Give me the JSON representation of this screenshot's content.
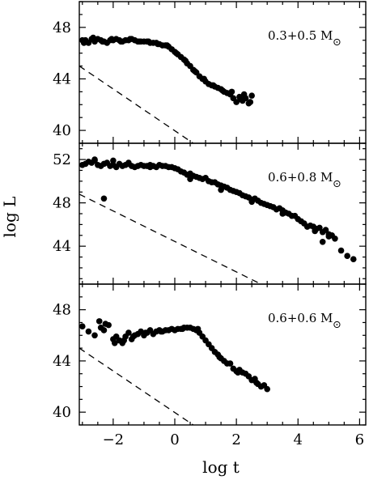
{
  "chart_data": [
    {
      "type": "scatter",
      "panel_label": "0.3+0.5",
      "panel_unit": "M",
      "xlim": [
        -3.1,
        6.2
      ],
      "ylim": [
        39,
        50
      ],
      "yticks": [
        40,
        44,
        48
      ],
      "scatter": {
        "x": [
          -3.0,
          -2.9,
          -2.8,
          -2.7,
          -2.6,
          -2.5,
          -2.4,
          -2.3,
          -2.2,
          -2.1,
          -2.0,
          -1.9,
          -1.8,
          -1.7,
          -1.6,
          -1.5,
          -1.4,
          -1.3,
          -1.2,
          -1.1,
          -1.0,
          -0.9,
          -0.8,
          -0.7,
          -0.6,
          -0.5,
          -0.4,
          -0.3,
          -0.2,
          -0.1,
          0.0,
          0.1,
          0.2,
          0.3,
          0.4,
          0.5,
          0.6,
          0.7,
          0.8,
          0.9,
          1.0,
          1.1,
          1.2,
          1.3,
          1.4,
          1.5,
          1.6,
          1.7,
          1.8,
          1.9,
          2.0,
          2.1,
          2.2,
          2.3,
          2.4,
          2.5,
          -2.95,
          -2.65,
          -2.35,
          -2.05,
          -1.75,
          -1.45,
          -1.15,
          -0.85,
          -0.55,
          -0.25,
          0.05,
          0.35,
          0.65,
          0.95,
          1.25,
          1.55,
          1.85,
          2.15,
          2.25,
          2.45
        ],
        "y": [
          47.0,
          47.0,
          46.8,
          47.1,
          46.9,
          47.1,
          47.0,
          46.9,
          46.8,
          47.0,
          47.0,
          47.1,
          47.0,
          46.9,
          47.0,
          47.0,
          47.1,
          47.0,
          46.9,
          46.9,
          46.9,
          46.9,
          46.8,
          46.8,
          46.8,
          46.7,
          46.6,
          46.6,
          46.5,
          46.3,
          46.1,
          45.9,
          45.7,
          45.5,
          45.2,
          45.0,
          44.7,
          44.5,
          44.2,
          44.0,
          43.8,
          43.6,
          43.5,
          43.4,
          43.3,
          43.2,
          43.0,
          42.9,
          42.8,
          42.5,
          42.2,
          42.6,
          42.3,
          42.5,
          42.1,
          42.7,
          46.8,
          47.2,
          46.9,
          47.1,
          46.9,
          47.1,
          46.9,
          46.9,
          46.7,
          46.6,
          46.0,
          45.4,
          44.6,
          44.0,
          43.5,
          43.1,
          43.0,
          42.4,
          42.8,
          42.2
        ]
      },
      "dashed_line": {
        "x": [
          -3.1,
          0.6
        ],
        "y": [
          45.0,
          39.0
        ]
      }
    },
    {
      "type": "scatter",
      "panel_label": "0.6+0.8",
      "panel_unit": "M",
      "xlim": [
        -3.1,
        6.2
      ],
      "ylim": [
        40.5,
        53.5
      ],
      "yticks": [
        44,
        48,
        52
      ],
      "scatter": {
        "x": [
          -3.0,
          -2.9,
          -2.8,
          -2.7,
          -2.6,
          -2.5,
          -2.4,
          -2.3,
          -2.2,
          -2.1,
          -2.0,
          -1.9,
          -1.8,
          -1.7,
          -1.6,
          -1.5,
          -1.4,
          -1.3,
          -1.2,
          -1.1,
          -1.0,
          -0.9,
          -0.8,
          -0.7,
          -0.6,
          -0.5,
          -0.4,
          -0.3,
          -0.2,
          -0.1,
          0.0,
          0.1,
          0.2,
          0.3,
          0.4,
          0.5,
          0.6,
          0.7,
          0.8,
          0.9,
          1.0,
          1.1,
          1.2,
          1.3,
          1.4,
          1.5,
          1.6,
          1.7,
          1.8,
          1.9,
          2.0,
          2.1,
          2.2,
          2.3,
          2.4,
          2.5,
          2.6,
          2.7,
          2.8,
          2.9,
          3.0,
          3.1,
          3.2,
          3.3,
          3.4,
          3.5,
          3.6,
          3.7,
          3.8,
          3.9,
          4.0,
          4.1,
          4.2,
          4.3,
          4.4,
          4.5,
          4.6,
          4.7,
          4.8,
          4.9,
          5.0,
          5.1,
          5.2,
          5.4,
          5.6,
          5.8,
          -2.3,
          -2.6,
          -2.0,
          -1.5,
          -0.8,
          0.5,
          1.5,
          2.5,
          3.5,
          4.55,
          4.8,
          5.0
        ],
        "y": [
          51.5,
          51.6,
          51.8,
          51.7,
          51.9,
          51.5,
          51.4,
          51.6,
          51.7,
          51.4,
          51.5,
          51.3,
          51.6,
          51.4,
          51.5,
          51.6,
          51.4,
          51.3,
          51.4,
          51.5,
          51.4,
          51.4,
          51.3,
          51.4,
          51.3,
          51.5,
          51.4,
          51.4,
          51.3,
          51.3,
          51.2,
          51.1,
          50.9,
          50.8,
          50.6,
          50.7,
          50.5,
          50.4,
          50.3,
          50.2,
          50.3,
          50.0,
          49.9,
          49.9,
          49.7,
          49.6,
          49.5,
          49.4,
          49.2,
          49.1,
          49.0,
          48.9,
          48.7,
          48.6,
          48.5,
          48.3,
          48.4,
          48.2,
          48.0,
          47.9,
          47.8,
          47.7,
          47.6,
          47.4,
          47.5,
          47.3,
          47.1,
          47.0,
          46.8,
          46.8,
          46.5,
          46.3,
          46.1,
          45.8,
          45.9,
          45.8,
          45.6,
          45.7,
          45.3,
          45.5,
          45.1,
          45.0,
          44.7,
          43.6,
          43.1,
          42.8,
          48.4,
          52.0,
          51.9,
          51.7,
          51.5,
          50.2,
          49.2,
          48.1,
          47.0,
          45.4,
          44.4,
          44.9
        ]
      },
      "dashed_line": {
        "x": [
          -3.1,
          2.8
        ],
        "y": [
          48.8,
          40.5
        ]
      }
    },
    {
      "type": "scatter",
      "panel_label": "0.6+0.6",
      "panel_unit": "M",
      "xlim": [
        -3.1,
        6.2
      ],
      "ylim": [
        39,
        50
      ],
      "yticks": [
        40,
        44,
        48
      ],
      "scatter": {
        "x": [
          -3.0,
          -2.8,
          -2.6,
          -2.45,
          -2.3,
          -2.15,
          -2.0,
          -1.9,
          -1.8,
          -1.7,
          -1.6,
          -1.5,
          -1.4,
          -1.3,
          -1.2,
          -1.1,
          -1.0,
          -0.9,
          -0.8,
          -0.7,
          -0.6,
          -0.5,
          -0.4,
          -0.3,
          -0.2,
          -0.1,
          0.0,
          0.1,
          0.2,
          0.3,
          0.4,
          0.5,
          0.6,
          0.7,
          0.8,
          0.9,
          1.0,
          1.1,
          1.2,
          1.3,
          1.4,
          1.5,
          1.6,
          1.7,
          1.8,
          1.9,
          2.0,
          2.1,
          2.2,
          2.3,
          2.4,
          2.5,
          2.6,
          2.7,
          2.8,
          2.9,
          3.0,
          -2.4,
          -2.25,
          -1.95,
          -1.65,
          -1.35,
          -0.95,
          -0.45,
          0.25,
          0.75,
          1.45,
          2.05,
          2.65
        ],
        "y": [
          46.7,
          46.3,
          46.0,
          47.1,
          46.4,
          46.8,
          45.7,
          45.9,
          45.6,
          45.4,
          45.9,
          46.2,
          45.7,
          46.0,
          46.1,
          46.3,
          46.0,
          46.2,
          46.4,
          46.1,
          46.3,
          46.4,
          46.3,
          46.4,
          46.4,
          46.5,
          46.4,
          46.5,
          46.5,
          46.6,
          46.6,
          46.6,
          46.5,
          46.4,
          46.2,
          45.9,
          45.6,
          45.3,
          45.0,
          44.7,
          44.5,
          44.2,
          44.0,
          43.8,
          43.8,
          43.4,
          43.2,
          43.3,
          43.1,
          43.0,
          42.8,
          42.5,
          42.6,
          42.2,
          42.0,
          42.1,
          41.8,
          46.6,
          46.9,
          45.4,
          45.6,
          45.9,
          46.2,
          46.3,
          46.5,
          46.5,
          44.3,
          43.1,
          42.3
        ]
      },
      "dashed_line": {
        "x": [
          -3.1,
          0.6
        ],
        "y": [
          45.0,
          39.0
        ]
      }
    }
  ],
  "axes": {
    "xlabel": "log t",
    "ylabel": "log L",
    "xticks": [
      -2,
      0,
      2,
      4,
      6
    ]
  }
}
